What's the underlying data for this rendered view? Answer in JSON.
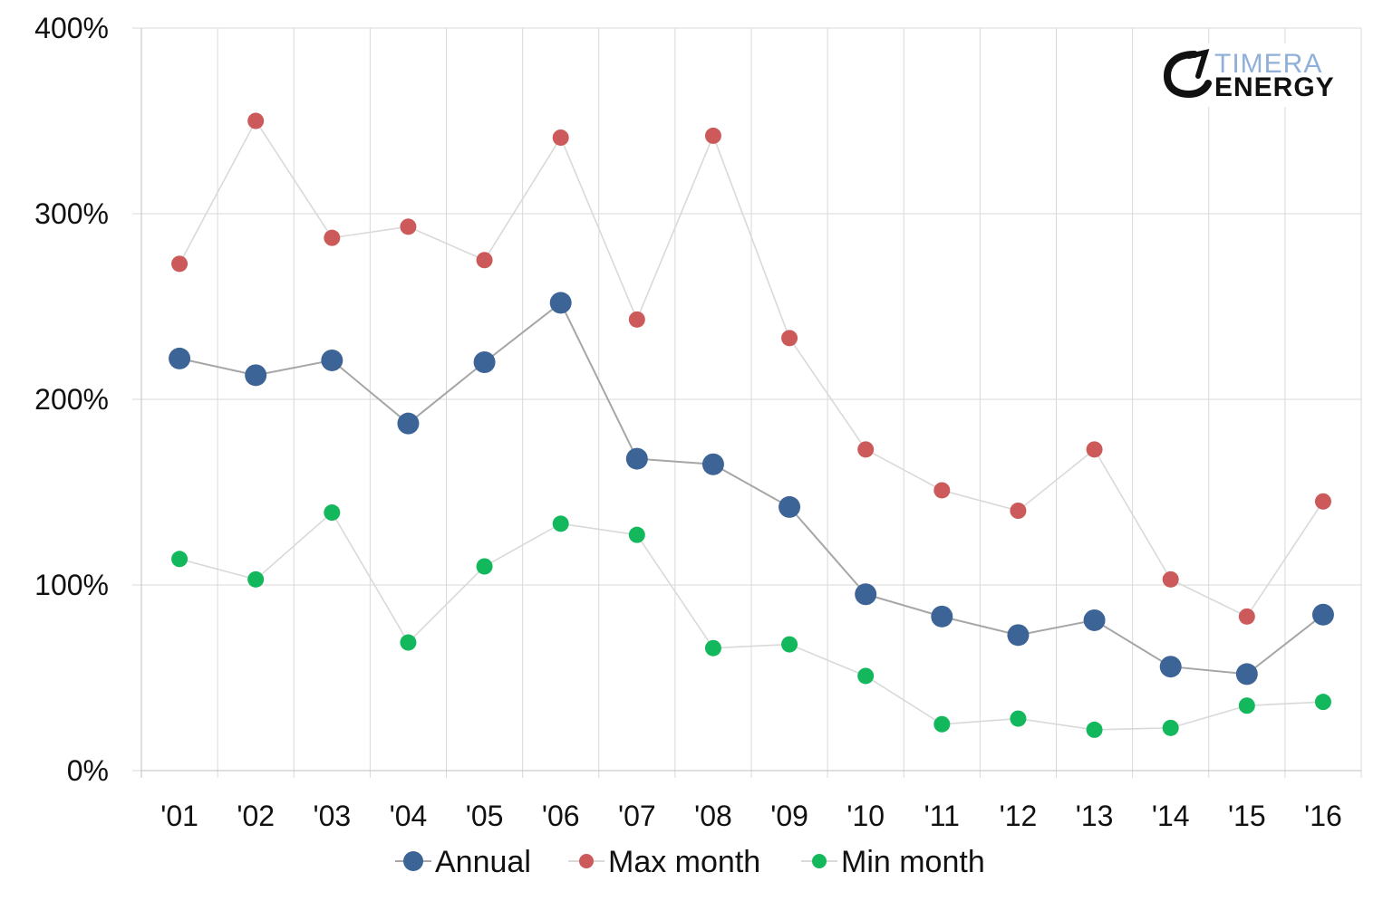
{
  "logo": {
    "top": "TIMERA",
    "bottom": "ENERGY"
  },
  "chart_data": {
    "type": "line",
    "categories": [
      "'01",
      "'02",
      "'03",
      "'04",
      "'05",
      "'06",
      "'07",
      "'08",
      "'09",
      "'10",
      "'11",
      "'12",
      "'13",
      "'14",
      "'15",
      "'16"
    ],
    "y_ticks": [
      "0%",
      "100%",
      "200%",
      "300%",
      "400%"
    ],
    "ylim": [
      0,
      400
    ],
    "grid": true,
    "legend_position": "bottom",
    "series": [
      {
        "name": "Annual",
        "color": "#3d6496",
        "line_color": "#a6a6a6",
        "values": [
          222,
          213,
          221,
          187,
          220,
          252,
          168,
          165,
          142,
          95,
          83,
          73,
          81,
          56,
          52,
          84
        ]
      },
      {
        "name": "Max month",
        "color": "#cc5a5a",
        "line_color": "#d9d9d9",
        "values": [
          273,
          350,
          287,
          293,
          275,
          341,
          243,
          342,
          233,
          173,
          151,
          140,
          173,
          103,
          83,
          145
        ]
      },
      {
        "name": "Min month",
        "color": "#13b85c",
        "line_color": "#d9d9d9",
        "values": [
          114,
          103,
          139,
          69,
          110,
          133,
          127,
          66,
          68,
          51,
          25,
          28,
          22,
          23,
          35,
          37
        ]
      }
    ]
  }
}
